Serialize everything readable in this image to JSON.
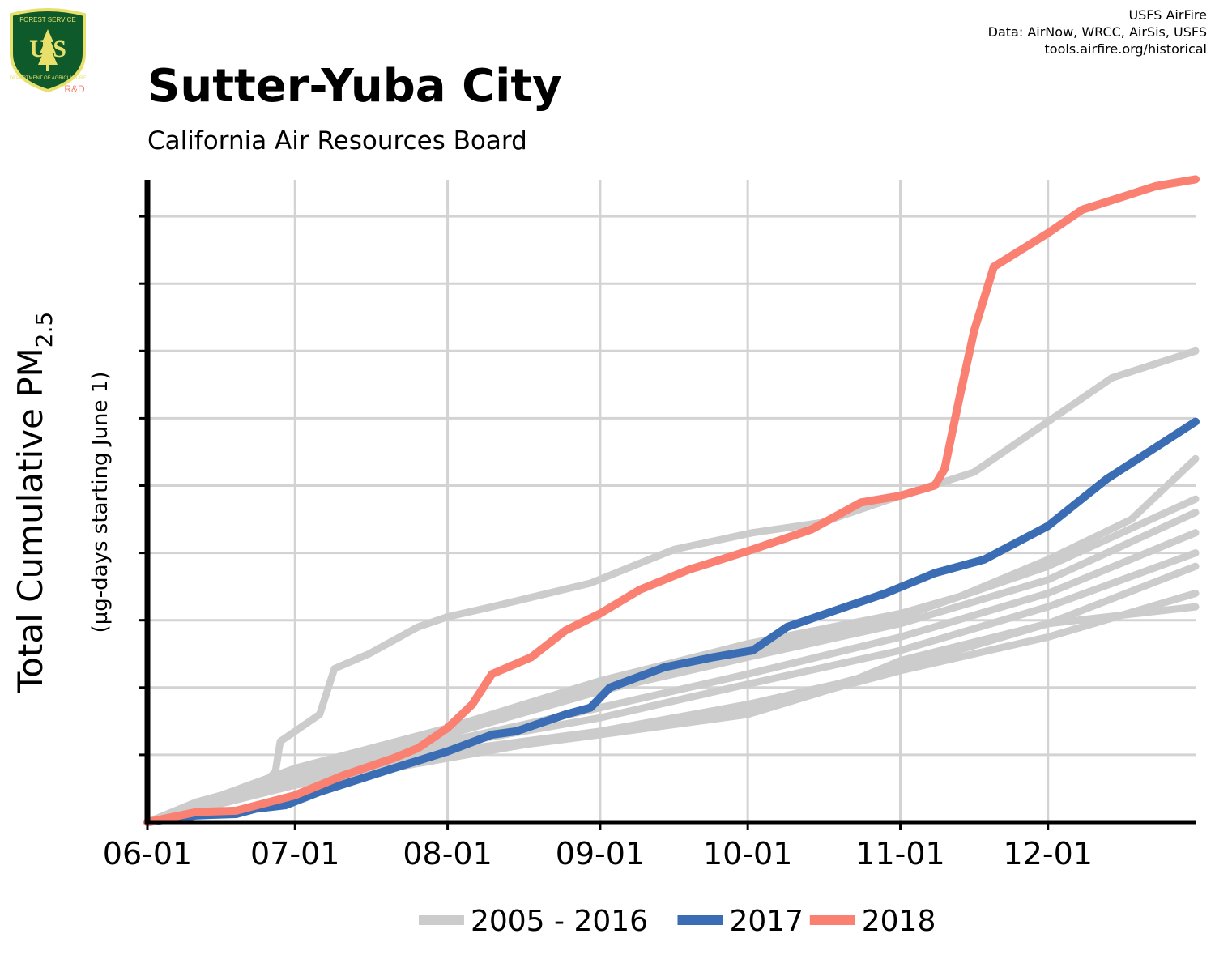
{
  "header": {
    "title": "Sutter-Yuba City",
    "subtitle": "California Air Resources Board",
    "credits": [
      "USFS AirFire",
      "Data: AirNow, WRCC, AirSis, USFS",
      "tools.airfire.org/historical"
    ]
  },
  "logo": {
    "top_text": "FOREST SERVICE",
    "letters": "U S",
    "bottom_text": "DEPARTMENT OF AGRICULTURE",
    "rd_label": "R&D",
    "colors": {
      "shield": "#0f5a2a",
      "trim": "#e8e06a",
      "rd": "#f08070"
    }
  },
  "chart_data": {
    "type": "line",
    "ylabel_main": "Total Cumulative PM",
    "ylabel_sub": "2.5",
    "ylabel_units": "(µg-days starting June 1)",
    "x_ticks": [
      "06-01",
      "07-01",
      "08-01",
      "09-01",
      "10-01",
      "11-01",
      "12-01"
    ],
    "x_tick_days": [
      0,
      30,
      61,
      92,
      122,
      153,
      183
    ],
    "xlim": [
      0,
      213
    ],
    "ylim": [
      0,
      9.55
    ],
    "y_unit_note": "no y tick labels are printed; values are in gridline units (one unit per horizontal gridline)",
    "grid": true,
    "legend_position": "bottom",
    "colors": {
      "historical": "#cccccc",
      "y2017": "#3a6db3",
      "y2018": "#fa8072"
    },
    "legend": [
      {
        "label": "2005 - 2016",
        "color": "#cccccc"
      },
      {
        "label": "2017",
        "color": "#3a6db3"
      },
      {
        "label": "2018",
        "color": "#fa8072"
      }
    ],
    "series": [
      {
        "group": "historical",
        "points": [
          [
            0,
            0
          ],
          [
            10,
            0.3
          ],
          [
            20,
            0.5
          ],
          [
            24,
            0.6
          ],
          [
            26,
            0.75
          ],
          [
            27,
            1.2
          ],
          [
            30,
            1.35
          ],
          [
            35,
            1.6
          ],
          [
            38,
            2.28
          ],
          [
            45,
            2.5
          ],
          [
            55,
            2.9
          ],
          [
            61,
            3.05
          ],
          [
            70,
            3.2
          ],
          [
            90,
            3.55
          ],
          [
            107,
            4.05
          ],
          [
            123,
            4.3
          ],
          [
            137,
            4.45
          ],
          [
            153,
            4.85
          ],
          [
            168,
            5.2
          ],
          [
            183,
            5.95
          ],
          [
            196,
            6.6
          ],
          [
            213,
            7.0
          ]
        ]
      },
      {
        "group": "historical",
        "points": [
          [
            0,
            0
          ],
          [
            30,
            0.8
          ],
          [
            61,
            1.4
          ],
          [
            92,
            2.1
          ],
          [
            122,
            2.65
          ],
          [
            153,
            3.1
          ],
          [
            165,
            3.35
          ],
          [
            183,
            3.9
          ],
          [
            200,
            4.5
          ],
          [
            213,
            5.4
          ]
        ]
      },
      {
        "group": "historical",
        "points": [
          [
            0,
            0
          ],
          [
            30,
            0.75
          ],
          [
            61,
            1.35
          ],
          [
            92,
            2.0
          ],
          [
            122,
            2.55
          ],
          [
            153,
            3.05
          ],
          [
            183,
            3.8
          ],
          [
            213,
            4.8
          ]
        ]
      },
      {
        "group": "historical",
        "points": [
          [
            0,
            0
          ],
          [
            30,
            0.7
          ],
          [
            61,
            1.3
          ],
          [
            92,
            1.95
          ],
          [
            122,
            2.45
          ],
          [
            153,
            2.95
          ],
          [
            183,
            3.6
          ],
          [
            213,
            4.6
          ]
        ]
      },
      {
        "group": "historical",
        "points": [
          [
            0,
            0
          ],
          [
            30,
            0.7
          ],
          [
            61,
            1.2
          ],
          [
            92,
            1.7
          ],
          [
            122,
            2.2
          ],
          [
            153,
            2.75
          ],
          [
            183,
            3.4
          ],
          [
            213,
            4.3
          ]
        ]
      },
      {
        "group": "historical",
        "points": [
          [
            0,
            0
          ],
          [
            30,
            0.65
          ],
          [
            61,
            1.15
          ],
          [
            92,
            1.55
          ],
          [
            122,
            2.05
          ],
          [
            153,
            2.55
          ],
          [
            183,
            3.2
          ],
          [
            213,
            4.0
          ]
        ]
      },
      {
        "group": "historical",
        "points": [
          [
            0,
            0
          ],
          [
            30,
            0.6
          ],
          [
            61,
            1.05
          ],
          [
            92,
            1.35
          ],
          [
            122,
            1.75
          ],
          [
            140,
            2.05
          ],
          [
            153,
            2.3
          ],
          [
            183,
            2.95
          ],
          [
            213,
            3.8
          ]
        ]
      },
      {
        "group": "historical",
        "points": [
          [
            0,
            0
          ],
          [
            30,
            0.55
          ],
          [
            61,
            0.95
          ],
          [
            92,
            1.35
          ],
          [
            122,
            1.65
          ],
          [
            153,
            2.25
          ],
          [
            183,
            2.75
          ],
          [
            213,
            3.4
          ]
        ]
      },
      {
        "group": "historical",
        "points": [
          [
            0,
            0
          ],
          [
            30,
            0.6
          ],
          [
            61,
            1.0
          ],
          [
            92,
            1.3
          ],
          [
            122,
            1.6
          ],
          [
            140,
            2.0
          ],
          [
            153,
            2.4
          ],
          [
            183,
            2.95
          ],
          [
            213,
            3.2
          ]
        ]
      },
      {
        "group": "2017",
        "points": [
          [
            0,
            0
          ],
          [
            10,
            0.1
          ],
          [
            18,
            0.12
          ],
          [
            22,
            0.2
          ],
          [
            28,
            0.25
          ],
          [
            35,
            0.45
          ],
          [
            50,
            0.8
          ],
          [
            61,
            1.05
          ],
          [
            70,
            1.3
          ],
          [
            75,
            1.35
          ],
          [
            85,
            1.6
          ],
          [
            90,
            1.7
          ],
          [
            94,
            2.0
          ],
          [
            105,
            2.3
          ],
          [
            115,
            2.45
          ],
          [
            123,
            2.55
          ],
          [
            130,
            2.9
          ],
          [
            140,
            3.15
          ],
          [
            150,
            3.4
          ],
          [
            160,
            3.7
          ],
          [
            170,
            3.9
          ],
          [
            183,
            4.4
          ],
          [
            195,
            5.1
          ],
          [
            213,
            5.95
          ]
        ]
      },
      {
        "group": "2018",
        "points": [
          [
            0,
            0
          ],
          [
            10,
            0.15
          ],
          [
            18,
            0.17
          ],
          [
            30,
            0.4
          ],
          [
            40,
            0.7
          ],
          [
            50,
            0.95
          ],
          [
            55,
            1.1
          ],
          [
            61,
            1.4
          ],
          [
            66,
            1.75
          ],
          [
            70,
            2.2
          ],
          [
            78,
            2.45
          ],
          [
            85,
            2.85
          ],
          [
            92,
            3.1
          ],
          [
            100,
            3.45
          ],
          [
            110,
            3.75
          ],
          [
            123,
            4.05
          ],
          [
            135,
            4.35
          ],
          [
            145,
            4.75
          ],
          [
            153,
            4.85
          ],
          [
            160,
            5.0
          ],
          [
            162,
            5.25
          ],
          [
            165,
            6.3
          ],
          [
            168,
            7.3
          ],
          [
            172,
            8.25
          ],
          [
            183,
            8.75
          ],
          [
            190,
            9.1
          ],
          [
            205,
            9.45
          ],
          [
            213,
            9.55
          ]
        ]
      }
    ]
  }
}
